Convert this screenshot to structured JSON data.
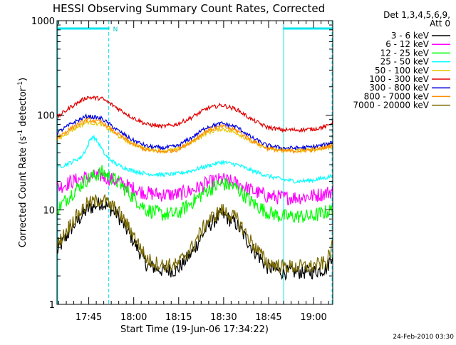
{
  "chart_data": {
    "type": "line",
    "title": "HESSI Observing Summary Count Rates, Corrected",
    "xlabel": "Start Time (19-Jun-06 17:34:22)",
    "ylabel": "Corrected Count Rate (s⁻¹ detector⁻¹)",
    "y_scale": "log",
    "ylim": [
      1,
      1000
    ],
    "xlim_minutes_after_17_34_22": [
      0,
      92
    ],
    "y_ticks": [
      "1",
      "10",
      "100",
      "1000"
    ],
    "x_ticks": [
      {
        "label": "17:45",
        "minute": 10.6
      },
      {
        "label": "18:00",
        "minute": 25.6
      },
      {
        "label": "18:15",
        "minute": 40.6
      },
      {
        "label": "18:30",
        "minute": 55.6
      },
      {
        "label": "18:45",
        "minute": 70.6
      },
      {
        "label": "19:00",
        "minute": 85.6
      }
    ],
    "legend_header": [
      "Det 1,3,4,5,6,9,",
      "Att 0"
    ],
    "legend_position": "right",
    "footer_date": "24-Feb-2010 03:30",
    "night_marker_label": "N",
    "night_intervals_minutes": [
      [
        0,
        17.5
      ],
      [
        75.4,
        92
      ]
    ],
    "series": [
      {
        "name": "3 - 6 keV",
        "color": "#000000",
        "x": [
          0,
          5,
          10,
          15,
          20,
          25,
          30,
          35,
          40,
          45,
          50,
          55,
          60,
          65,
          70,
          75,
          80,
          85,
          90,
          92
        ],
        "values": [
          3.6,
          6.5,
          10,
          12,
          9,
          5,
          2.6,
          2.3,
          2.3,
          3.5,
          6.5,
          9,
          7,
          4,
          2.5,
          2.2,
          2.2,
          2.2,
          2.4,
          3.5
        ]
      },
      {
        "name": "6 - 12 keV",
        "color": "#ff00ff",
        "x": [
          0,
          5,
          10,
          15,
          20,
          25,
          30,
          35,
          40,
          45,
          50,
          55,
          60,
          65,
          70,
          75,
          80,
          85,
          90,
          92
        ],
        "values": [
          17,
          20,
          22,
          23,
          20,
          17,
          15,
          14.5,
          14.5,
          16,
          19,
          21,
          19,
          16,
          14,
          13.5,
          13.5,
          14,
          15,
          16
        ]
      },
      {
        "name": "12 - 25 keV",
        "color": "#00ff00",
        "x": [
          0,
          5,
          10,
          15,
          20,
          25,
          30,
          35,
          40,
          45,
          50,
          55,
          60,
          65,
          70,
          75,
          80,
          85,
          90,
          92
        ],
        "values": [
          10,
          15,
          21,
          25,
          20,
          14,
          10,
          9,
          9,
          12,
          16,
          19,
          17,
          12,
          9.5,
          8.5,
          8.5,
          8.5,
          9.5,
          10
        ]
      },
      {
        "name": "25 - 50 keV",
        "color": "#00ffff",
        "x": [
          0,
          4,
          8,
          10,
          11,
          12,
          14,
          16,
          20,
          25,
          30,
          35,
          40,
          45,
          50,
          55,
          60,
          65,
          70,
          75,
          80,
          85,
          90,
          92
        ],
        "values": [
          28,
          31,
          36,
          45,
          55,
          60,
          50,
          38,
          30,
          26,
          24,
          23.5,
          24,
          26,
          29,
          32,
          30,
          26,
          23,
          21,
          20,
          20.5,
          22,
          23
        ]
      },
      {
        "name": "50 - 100 keV",
        "color": "#e6c800",
        "x": [
          0,
          5,
          10,
          15,
          20,
          25,
          30,
          35,
          40,
          45,
          50,
          55,
          60,
          65,
          70,
          75,
          80,
          85,
          90,
          92
        ],
        "values": [
          55,
          70,
          85,
          80,
          62,
          50,
          44,
          42,
          43,
          52,
          65,
          72,
          65,
          52,
          45,
          42,
          42,
          43,
          45,
          47
        ]
      },
      {
        "name": "100 - 300 keV",
        "color": "#e00000",
        "x": [
          0,
          5,
          10,
          15,
          20,
          25,
          30,
          35,
          40,
          45,
          50,
          55,
          60,
          65,
          70,
          75,
          80,
          85,
          90,
          92
        ],
        "values": [
          95,
          125,
          155,
          150,
          120,
          95,
          80,
          76,
          80,
          95,
          118,
          128,
          115,
          90,
          75,
          70,
          70,
          71,
          76,
          85
        ]
      },
      {
        "name": "300 - 800 keV",
        "color": "#0000e0",
        "x": [
          0,
          5,
          10,
          15,
          20,
          25,
          30,
          35,
          40,
          45,
          50,
          55,
          60,
          65,
          70,
          75,
          80,
          85,
          90,
          92
        ],
        "values": [
          65,
          82,
          98,
          92,
          70,
          55,
          47,
          45,
          47,
          58,
          75,
          82,
          75,
          58,
          48,
          45,
          45,
          46,
          49,
          53
        ]
      },
      {
        "name": "800 - 7000 keV",
        "color": "#ff8c00",
        "x": [
          0,
          5,
          10,
          15,
          20,
          25,
          30,
          35,
          40,
          45,
          50,
          55,
          60,
          65,
          70,
          75,
          80,
          85,
          90,
          92
        ],
        "values": [
          58,
          74,
          90,
          84,
          64,
          50,
          43,
          41,
          43,
          53,
          69,
          76,
          69,
          54,
          45,
          42,
          42,
          43,
          46,
          49
        ]
      },
      {
        "name": "7000 - 20000 keV",
        "color": "#7a6a00",
        "x": [
          0,
          5,
          10,
          15,
          20,
          25,
          30,
          35,
          40,
          45,
          50,
          55,
          60,
          65,
          70,
          75,
          80,
          85,
          90,
          92
        ],
        "values": [
          4.2,
          7.5,
          11.5,
          13,
          10,
          5.8,
          3.0,
          2.6,
          2.6,
          4.0,
          7.5,
          10,
          8,
          4.5,
          2.8,
          2.5,
          2.5,
          2.5,
          2.8,
          4.2
        ]
      }
    ]
  }
}
